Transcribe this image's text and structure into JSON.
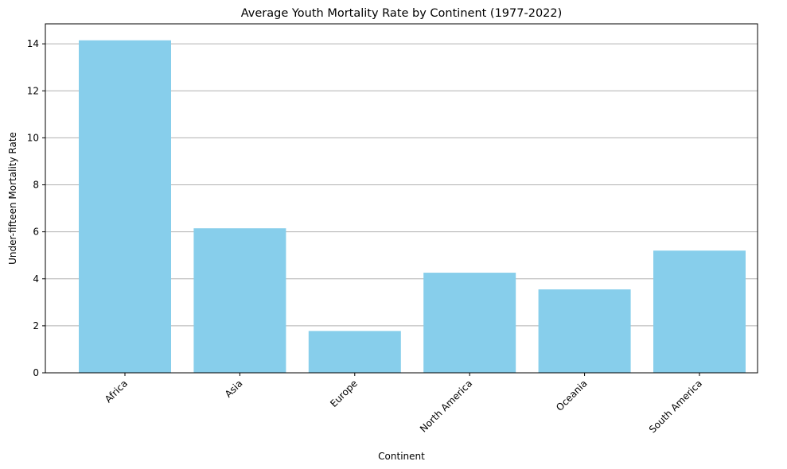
{
  "chart_data": {
    "type": "bar",
    "title": "Average Youth Mortality Rate by Continent (1977-2022)",
    "xlabel": "Continent",
    "ylabel": "Under-fifteen Mortality Rate",
    "categories": [
      "Africa",
      "Asia",
      "Europe",
      "North America",
      "Oceania",
      "South America"
    ],
    "values": [
      14.15,
      6.15,
      1.78,
      4.26,
      3.55,
      5.2
    ],
    "ylim": [
      0,
      14.85
    ],
    "yticks": [
      0,
      2,
      4,
      6,
      8,
      10,
      12,
      14
    ],
    "grid": "y-major",
    "bar_color": "#87CEEB",
    "grid_color": "#b0b0b0",
    "xtick_rotation": 45
  }
}
